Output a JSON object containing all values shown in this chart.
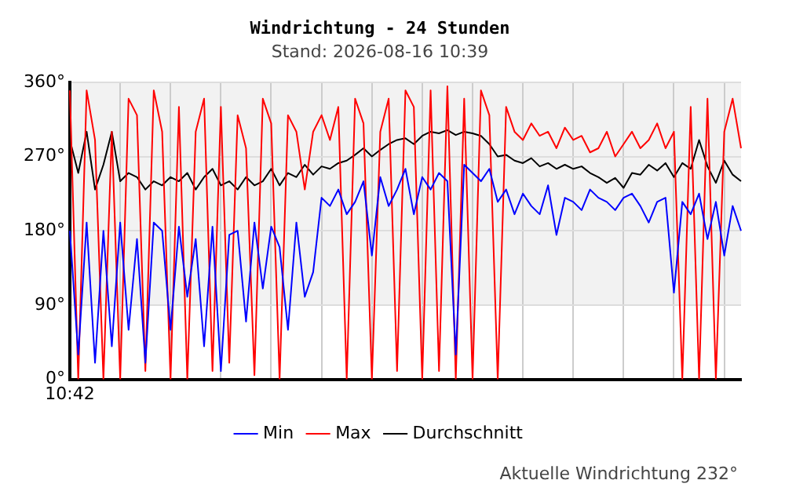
{
  "chart_data": {
    "type": "line",
    "title": "Windrichtung - 24 Stunden",
    "subtitle": "Stand: 2026-08-16 10:39",
    "annotations": [
      "Aktuelle Windrichtung 232°"
    ],
    "categories": [
      "10:42",
      null,
      null,
      null,
      null,
      null,
      null,
      null,
      null,
      null,
      null,
      null,
      null,
      null,
      null,
      null,
      null,
      null,
      null,
      null,
      null,
      null,
      null,
      null,
      null,
      null,
      null,
      null,
      null,
      null,
      null,
      null,
      null,
      null,
      null,
      null,
      null,
      null,
      null,
      null,
      null,
      null,
      null,
      null,
      null,
      null,
      null,
      null,
      null,
      null,
      null,
      null,
      null,
      null,
      null,
      null,
      null,
      null,
      null,
      null,
      null,
      null,
      null,
      null,
      null,
      null,
      null,
      null,
      null,
      null,
      null,
      null,
      null,
      null,
      null,
      null,
      null,
      null,
      null,
      null,
      null
    ],
    "series": [
      {
        "name": "Min",
        "color": "#0000ff",
        "values": [
          180,
          30,
          190,
          20,
          180,
          40,
          190,
          60,
          170,
          20,
          190,
          180,
          60,
          185,
          100,
          170,
          40,
          185,
          10,
          175,
          180,
          70,
          190,
          110,
          185,
          160,
          60,
          190,
          100,
          130,
          220,
          210,
          230,
          200,
          215,
          240,
          150,
          245,
          210,
          230,
          255,
          200,
          245,
          230,
          250,
          240,
          30,
          260,
          250,
          240,
          255,
          215,
          230,
          200,
          225,
          210,
          200,
          235,
          175,
          220,
          215,
          205,
          230,
          220,
          215,
          205,
          220,
          225,
          210,
          190,
          215,
          220,
          105,
          215,
          200,
          225,
          170,
          215,
          150,
          210,
          180
        ]
      },
      {
        "name": "Max",
        "color": "#ff0000",
        "values": [
          350,
          0,
          350,
          290,
          0,
          300,
          0,
          340,
          320,
          10,
          350,
          300,
          0,
          330,
          0,
          300,
          340,
          10,
          330,
          20,
          320,
          280,
          5,
          340,
          310,
          0,
          320,
          300,
          230,
          300,
          320,
          290,
          330,
          0,
          340,
          310,
          0,
          300,
          340,
          10,
          350,
          330,
          0,
          350,
          10,
          355,
          0,
          340,
          0,
          350,
          320,
          0,
          330,
          300,
          290,
          310,
          295,
          300,
          280,
          305,
          290,
          295,
          275,
          280,
          300,
          270,
          285,
          300,
          280,
          290,
          310,
          280,
          300,
          0,
          330,
          0,
          340,
          0,
          300,
          340,
          280
        ]
      },
      {
        "name": "Durchschnitt",
        "color": "#000000",
        "values": [
          290,
          250,
          300,
          230,
          260,
          300,
          240,
          250,
          245,
          230,
          240,
          235,
          245,
          240,
          250,
          230,
          245,
          255,
          235,
          240,
          230,
          245,
          235,
          240,
          255,
          235,
          250,
          245,
          260,
          248,
          258,
          255,
          262,
          265,
          272,
          280,
          270,
          278,
          285,
          290,
          292,
          285,
          295,
          300,
          298,
          302,
          296,
          300,
          298,
          295,
          285,
          270,
          272,
          265,
          262,
          268,
          258,
          262,
          255,
          260,
          255,
          258,
          250,
          245,
          238,
          244,
          232,
          250,
          248,
          260,
          253,
          262,
          245,
          262,
          255,
          290,
          258,
          238,
          265,
          248,
          240
        ]
      }
    ],
    "ylim": [
      0,
      360
    ],
    "yticks": [
      {
        "value": 0,
        "label": "0°"
      },
      {
        "value": 90,
        "label": "90°"
      },
      {
        "value": 180,
        "label": "180°"
      },
      {
        "value": 270,
        "label": "270°"
      },
      {
        "value": 360,
        "label": "360°"
      }
    ],
    "bands": [
      {
        "axis": "y",
        "from": 90,
        "to": 360,
        "color": "#f2f2f2"
      }
    ],
    "grid": true,
    "legend": "bottom",
    "marker": "none",
    "line_style": "solid"
  }
}
